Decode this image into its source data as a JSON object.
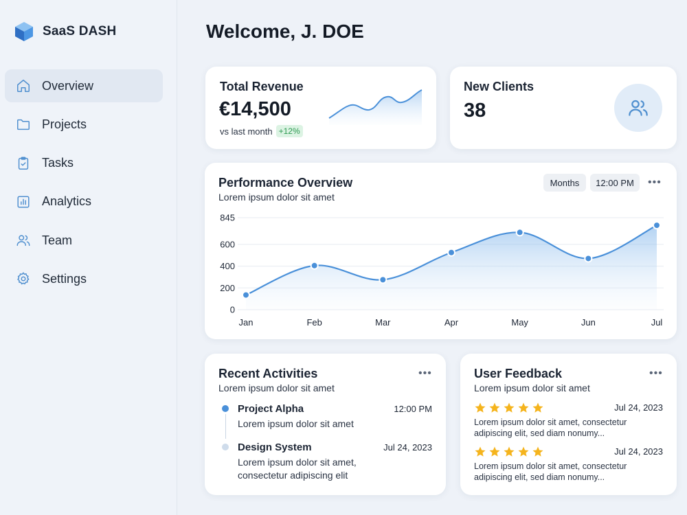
{
  "brand": {
    "name": "SaaS DASH",
    "logo_icon": "cube-logo-icon"
  },
  "sidebar": {
    "items": [
      {
        "label": "Overview",
        "icon": "home-icon",
        "active": true
      },
      {
        "label": "Projects",
        "icon": "folder-icon",
        "active": false
      },
      {
        "label": "Tasks",
        "icon": "clipboard-icon",
        "active": false
      },
      {
        "label": "Analytics",
        "icon": "bar-chart-icon",
        "active": false
      },
      {
        "label": "Team",
        "icon": "users-icon",
        "active": false
      },
      {
        "label": "Settings",
        "icon": "gear-icon",
        "active": false
      }
    ]
  },
  "header": {
    "welcome": "Welcome, J. DOE"
  },
  "revenue": {
    "title": "Total Revenue",
    "value": "€14,500",
    "compare_label": "vs last month",
    "change": "+12%"
  },
  "clients": {
    "title": "New Clients",
    "value": "38",
    "icon": "users-icon"
  },
  "performance": {
    "title": "Performance Overview",
    "subtitle": "Lorem ipsum dolor sit amet",
    "period_button": "Months",
    "time_button": "12:00 PM",
    "more_icon": "more-horizontal-icon"
  },
  "chart_data": {
    "type": "area",
    "x": [
      "Jan",
      "Feb",
      "Mar",
      "Apr",
      "May",
      "Jun",
      "Jul"
    ],
    "values": [
      135,
      405,
      275,
      525,
      710,
      470,
      775
    ],
    "yticks": [
      0,
      200,
      400,
      600,
      845
    ],
    "ylim": [
      0,
      845
    ],
    "grid": true,
    "legend": "none"
  },
  "activities": {
    "title": "Recent Activities",
    "subtitle": "Lorem ipsum dolor sit amet",
    "items": [
      {
        "title": "Project Alpha",
        "time": "12:00 PM",
        "desc": [
          "Lorem ipsum dolor sit amet"
        ]
      },
      {
        "title": "Design System",
        "time": "Jul 24, 2023",
        "desc": [
          "Lorem ipsum dolor sit amet,",
          "consectetur adipiscing elit"
        ]
      }
    ]
  },
  "feedback": {
    "title": "User Feedback",
    "subtitle": "Lorem ipsum dolor sit amet",
    "items": [
      {
        "rating": 5,
        "date": "Jul 24, 2023",
        "text": [
          "Lorem ipsum dolor sit amet, consectetur",
          "adipiscing elit, sed diam nonumy..."
        ]
      },
      {
        "rating": 5,
        "date": "Jul 24, 2023",
        "text": [
          "Lorem ipsum dolor sit amet, consectetur",
          "adipiscing elit, sed diam nonumy..."
        ]
      }
    ]
  },
  "colors": {
    "accent": "#4a90d9",
    "star": "#f5b41d",
    "positive": "#2e9a52"
  }
}
